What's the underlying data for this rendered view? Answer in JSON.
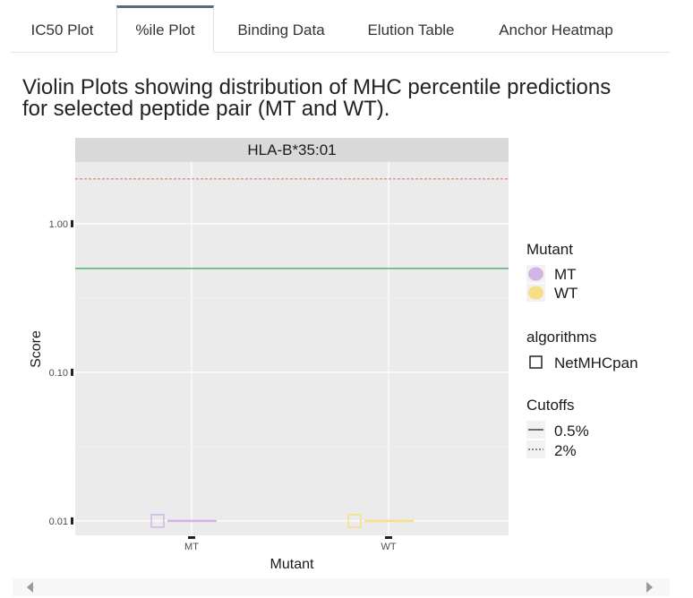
{
  "tabs": [
    {
      "label": "IC50 Plot",
      "active": false
    },
    {
      "label": "%ile Plot",
      "active": true
    },
    {
      "label": "Binding Data",
      "active": false
    },
    {
      "label": "Elution Table",
      "active": false
    },
    {
      "label": "Anchor Heatmap",
      "active": false
    }
  ],
  "heading": {
    "line1": "Violin Plots showing distribution of MHC percentile predictions",
    "line2": "for selected peptide pair (MT and WT)."
  },
  "colors": {
    "panel_bg": "#ebebeb",
    "strip_bg": "#d9d9d9",
    "mt": "#d3b5e5",
    "wt": "#f7df86",
    "cutoff_05": "#2eaa55",
    "cutoff_2": "#e8635f"
  },
  "chart_data": {
    "type": "violin",
    "facet": "HLA-B*35:01",
    "xlabel": "Mutant",
    "ylabel": "Score",
    "y_scale": "log10",
    "ylim": [
      0.008,
      2.6
    ],
    "categories": [
      "MT",
      "WT"
    ],
    "y_ticks": [
      {
        "value": 1.0,
        "label": "1.00"
      },
      {
        "value": 0.1,
        "label": "0.10"
      },
      {
        "value": 0.01,
        "label": "0.01"
      }
    ],
    "series": [
      {
        "name": "MT",
        "algorithm": "NetMHCpan",
        "values": [
          0.01
        ]
      },
      {
        "name": "WT",
        "algorithm": "NetMHCpan",
        "values": [
          0.01
        ]
      }
    ],
    "cutoffs": [
      {
        "label": "0.5%",
        "value": 0.5,
        "linetype": "solid"
      },
      {
        "label": "2%",
        "value": 2.0,
        "linetype": "dashed"
      }
    ],
    "legend": {
      "placement": "right",
      "fill_title": "Mutant",
      "fill_items": [
        "MT",
        "WT"
      ],
      "shape_title": "algorithms",
      "shape_items": [
        "NetMHCpan"
      ],
      "linetype_title": "Cutoffs",
      "linetype_items": [
        "0.5%",
        "2%"
      ]
    }
  }
}
